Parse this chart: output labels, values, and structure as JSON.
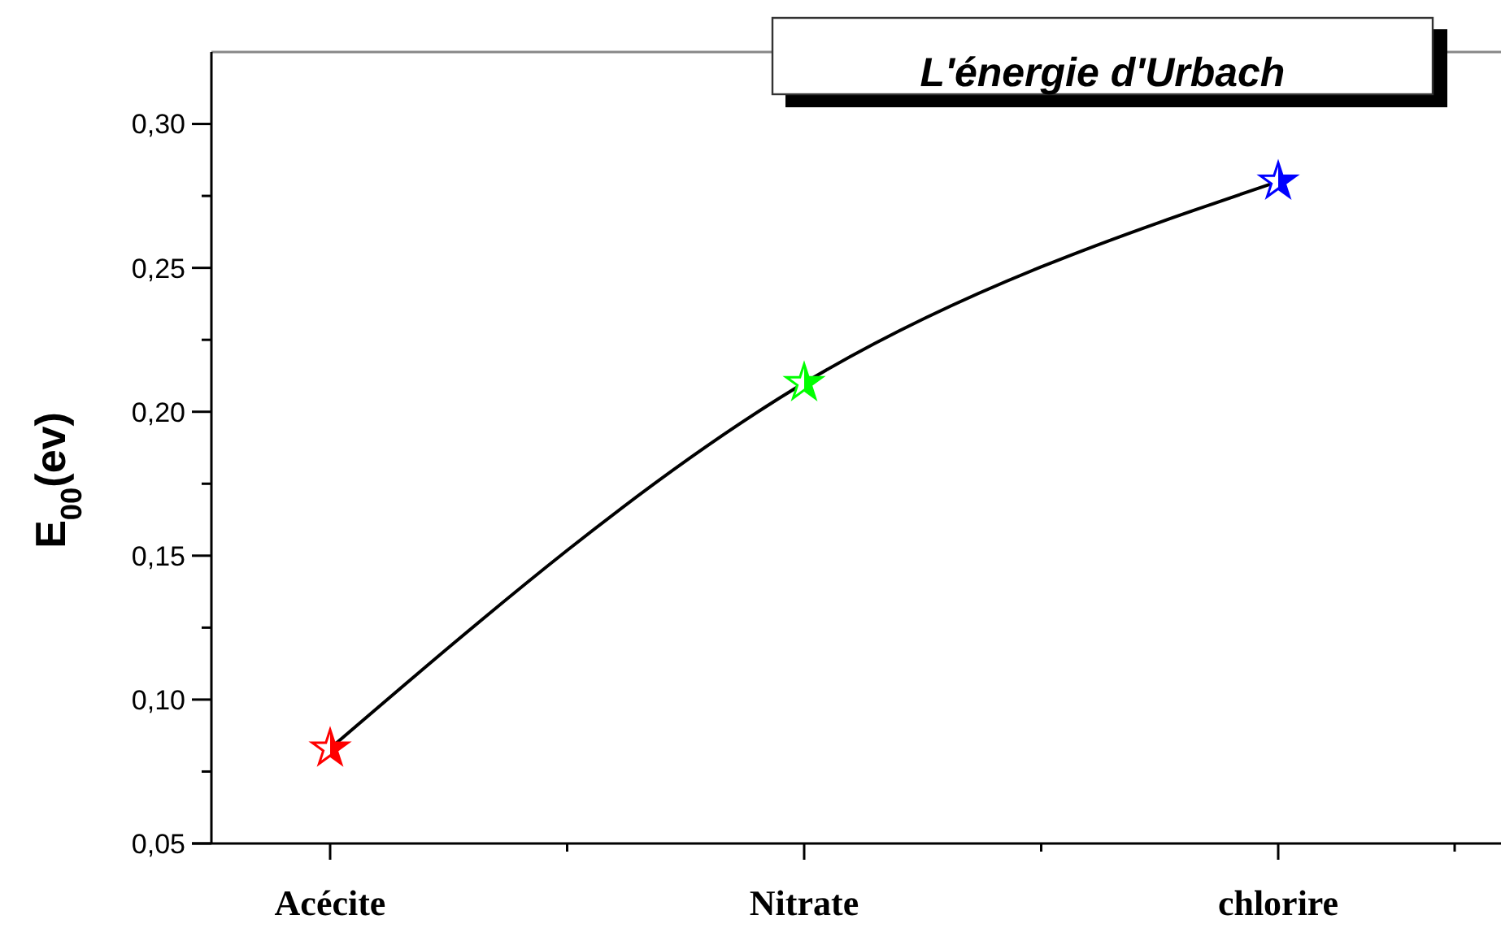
{
  "chart_data": {
    "type": "line",
    "title": "L'énergie d'Urbach",
    "ylabel": "E$_{00}$(ev)",
    "categories": [
      "Acécite",
      "Nitrate",
      "chlorire"
    ],
    "series": [
      {
        "color": "#000000",
        "colors": [
          "#ff0000",
          "#00ff00",
          "#0000ff"
        ],
        "values": [
          0.083,
          0.21,
          0.28
        ]
      }
    ],
    "ylim": [
      0.05,
      0.325
    ],
    "yticks": [
      {
        "value": 0.05,
        "label": "0,05"
      },
      {
        "value": 0.075,
        "label": null
      },
      {
        "value": 0.1,
        "label": "0,10"
      },
      {
        "value": 0.125,
        "label": null
      },
      {
        "value": 0.15,
        "label": "0,15"
      },
      {
        "value": 0.175,
        "label": null
      },
      {
        "value": 0.2,
        "label": "0,20"
      },
      {
        "value": 0.225,
        "label": null
      },
      {
        "value": 0.25,
        "label": "0,25"
      },
      {
        "value": 0.275,
        "label": null
      },
      {
        "value": 0.3,
        "label": "0,30"
      }
    ],
    "marker": "star",
    "line_style": "solid",
    "grid": false
  }
}
